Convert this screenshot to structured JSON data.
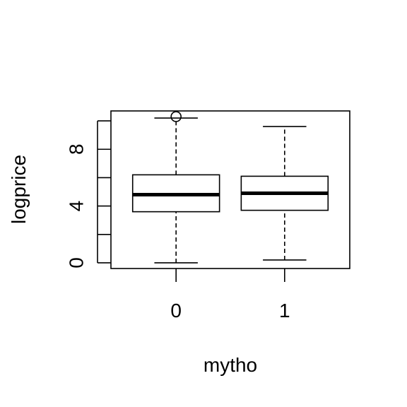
{
  "chart_data": {
    "type": "box",
    "xlabel": "mytho",
    "ylabel": "logprice",
    "categories": [
      "0",
      "1"
    ],
    "y_ticks": [
      0,
      2,
      4,
      6,
      8,
      10
    ],
    "y_tick_labels": [
      "0",
      "4",
      "8"
    ],
    "ylim": [
      -0.4,
      10.7
    ],
    "boxes": [
      {
        "category": "0",
        "whisker_low": 0.0,
        "q1": 3.6,
        "median": 4.8,
        "q3": 6.2,
        "whisker_high": 10.2,
        "outliers": [
          10.3
        ]
      },
      {
        "category": "1",
        "whisker_low": 0.2,
        "q1": 3.7,
        "median": 4.9,
        "q3": 6.1,
        "whisker_high": 9.6,
        "outliers": []
      }
    ]
  }
}
